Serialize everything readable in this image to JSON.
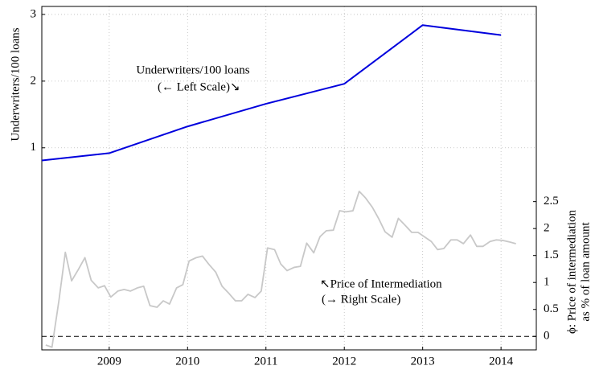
{
  "chart_data": {
    "type": "line",
    "ylabel": "Underwriters/100 loans",
    "y2label": [
      "ϕ: Price of intermediation",
      "as % of loan amount"
    ],
    "xlim": [
      2008.14,
      2014.45
    ],
    "xticks": [
      2009,
      2010,
      2011,
      2012,
      2013,
      2014
    ],
    "ylim": [
      -2.03,
      3.12
    ],
    "yticks": [
      1,
      2,
      3
    ],
    "y2lim": [
      -0.25,
      6.12
    ],
    "y2ticks": [
      0,
      0.5,
      1,
      1.5,
      2,
      2.5
    ],
    "y2_refline": 0,
    "grid": true,
    "annotations": [
      "Underwriters/100 loans",
      "(← Left Scale)↘",
      "↖Price of Intermediation",
      "(→ Right Scale)"
    ],
    "series": [
      {
        "name": "Underwriters/100 loans",
        "color": "#0000dd",
        "axis": "y",
        "x": [
          2008.14,
          2009,
          2010,
          2011,
          2012,
          2013,
          2014
        ],
        "values": [
          0.81,
          0.92,
          1.32,
          1.66,
          1.96,
          2.84,
          2.69
        ]
      },
      {
        "name": "Price of Intermediation",
        "color": "#c8c8c8",
        "axis": "y2",
        "x": [
          2008.19,
          2008.27,
          2008.36,
          2008.44,
          2008.52,
          2008.61,
          2008.69,
          2008.77,
          2008.86,
          2008.94,
          2009.02,
          2009.11,
          2009.19,
          2009.27,
          2009.36,
          2009.44,
          2009.52,
          2009.61,
          2009.69,
          2009.77,
          2009.86,
          2009.94,
          2010.02,
          2010.11,
          2010.19,
          2010.27,
          2010.36,
          2010.44,
          2010.52,
          2010.61,
          2010.69,
          2010.77,
          2010.86,
          2010.94,
          2011.02,
          2011.11,
          2011.19,
          2011.27,
          2011.36,
          2011.44,
          2011.52,
          2011.61,
          2011.69,
          2011.77,
          2011.86,
          2011.94,
          2012.02,
          2012.11,
          2012.19,
          2012.27,
          2012.36,
          2012.44,
          2012.52,
          2012.61,
          2012.69,
          2012.77,
          2012.86,
          2012.94,
          2013.02,
          2013.11,
          2013.19,
          2013.27,
          2013.36,
          2013.44,
          2013.52,
          2013.61,
          2013.69,
          2013.77,
          2013.86,
          2013.94,
          2014.02,
          2014.11,
          2014.19
        ],
        "values": [
          -0.16,
          -0.2,
          0.68,
          1.56,
          1.03,
          1.25,
          1.46,
          1.04,
          0.9,
          0.94,
          0.73,
          0.84,
          0.87,
          0.84,
          0.9,
          0.93,
          0.57,
          0.54,
          0.66,
          0.6,
          0.9,
          0.96,
          1.4,
          1.46,
          1.49,
          1.34,
          1.19,
          0.93,
          0.81,
          0.66,
          0.66,
          0.78,
          0.72,
          0.84,
          1.64,
          1.61,
          1.34,
          1.22,
          1.28,
          1.3,
          1.73,
          1.55,
          1.85,
          1.96,
          1.97,
          2.33,
          2.31,
          2.33,
          2.69,
          2.57,
          2.39,
          2.18,
          1.94,
          1.84,
          2.19,
          2.07,
          1.93,
          1.93,
          1.85,
          1.76,
          1.61,
          1.63,
          1.79,
          1.79,
          1.72,
          1.88,
          1.67,
          1.67,
          1.76,
          1.79,
          1.78,
          1.75,
          1.72
        ]
      }
    ]
  }
}
